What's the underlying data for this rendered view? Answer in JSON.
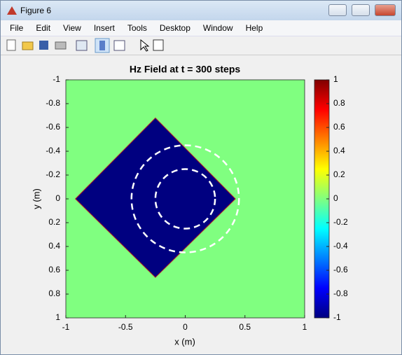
{
  "window": {
    "title": "Figure 6",
    "menu": [
      "File",
      "Edit",
      "View",
      "Insert",
      "Tools",
      "Desktop",
      "Window",
      "Help"
    ]
  },
  "chart_data": {
    "type": "heatmap",
    "title": "Hz Field at t = 300 steps",
    "x_label": "x (m)",
    "y_label": "y (m)",
    "xlim": [
      -1,
      1
    ],
    "ylim": [
      -1,
      1
    ],
    "y_direction": "reverse",
    "xticks": [
      -1,
      -0.5,
      0,
      0.5,
      1
    ],
    "yticks": [
      -1,
      -0.8,
      -0.6,
      -0.4,
      -0.2,
      0,
      0.2,
      0.4,
      0.6,
      0.8,
      1
    ],
    "colormap": "jet",
    "clim": [
      -1,
      1
    ],
    "colorbar_ticks": [
      1,
      0.8,
      0.6,
      0.4,
      0.2,
      0,
      -0.2,
      -0.4,
      -0.6,
      -0.8,
      -1
    ],
    "background_value": 0,
    "regions": [
      {
        "shape": "diamond",
        "x": [
          -0.92,
          -0.25,
          0.42,
          -0.25
        ],
        "y": [
          0,
          -0.68,
          0,
          0.66
        ],
        "value": -1
      }
    ],
    "circles": [
      {
        "cx": 0,
        "cy": 0,
        "r": 0.25
      },
      {
        "cx": 0,
        "cy": 0,
        "r": 0.45
      }
    ],
    "circle_color": "#ffffff"
  }
}
